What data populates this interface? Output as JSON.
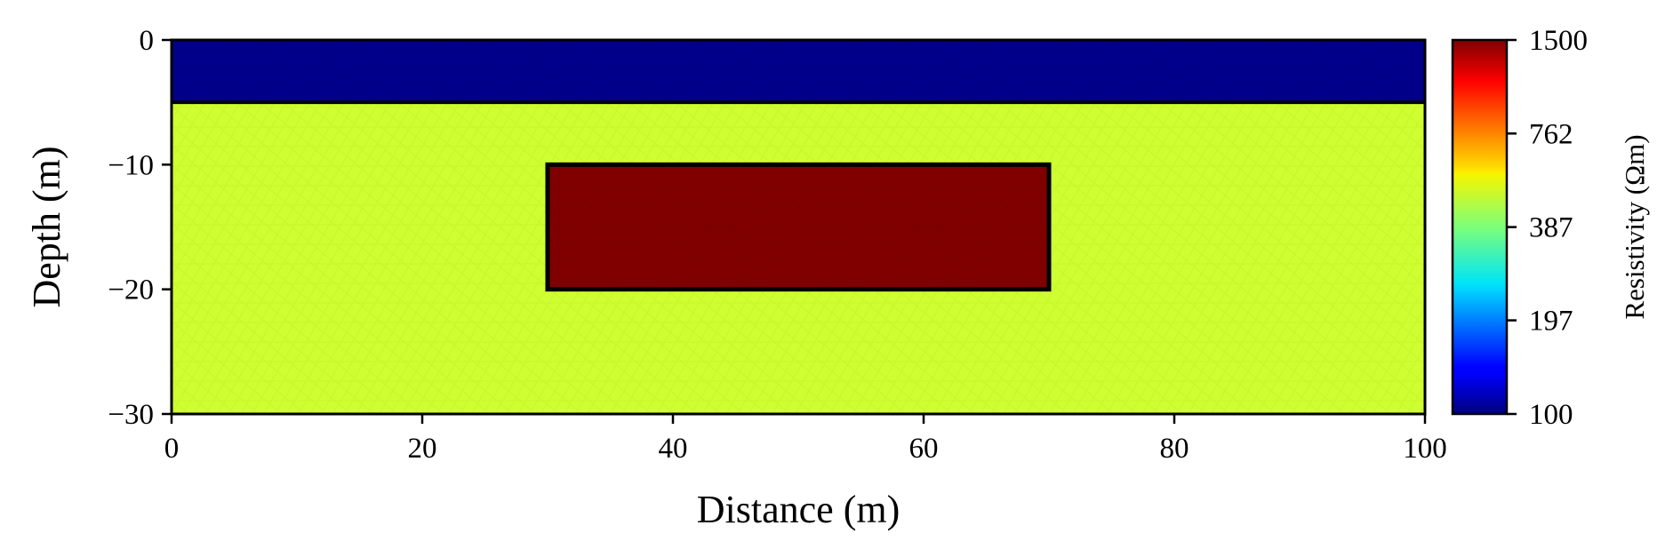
{
  "chart_data": {
    "type": "heatmap",
    "title": "",
    "xlabel": "Distance (m)",
    "ylabel": "Depth (m)",
    "xlim": [
      0,
      100
    ],
    "ylim": [
      -30,
      0
    ],
    "xticks": [
      0,
      20,
      40,
      60,
      80,
      100
    ],
    "xtick_labels": [
      "0",
      "20",
      "40",
      "60",
      "80",
      "100"
    ],
    "yticks": [
      0,
      -10,
      -20,
      -30
    ],
    "ytick_labels": [
      "0",
      "−10",
      "−20",
      "−30"
    ],
    "regions": [
      {
        "name": "top layer",
        "x": [
          0,
          100
        ],
        "y": [
          -5,
          0
        ],
        "resistivity": 100,
        "color": "#00008b"
      },
      {
        "name": "background",
        "x": [
          0,
          100
        ],
        "y": [
          -30,
          -5
        ],
        "resistivity": 600,
        "color": "#cfff30"
      },
      {
        "name": "block",
        "x": [
          30,
          70
        ],
        "y": [
          -20,
          -10
        ],
        "resistivity": 1500,
        "color": "#800000"
      }
    ],
    "colorbar": {
      "label": "Resistivity (Ωm)",
      "colormap": "jet",
      "scale": "log",
      "range": [
        100,
        1500
      ],
      "ticks": [
        100,
        197,
        387,
        762,
        1500
      ],
      "tick_labels": [
        "100",
        "197",
        "387",
        "762",
        "1500"
      ]
    },
    "grid": false,
    "legend": "none"
  }
}
